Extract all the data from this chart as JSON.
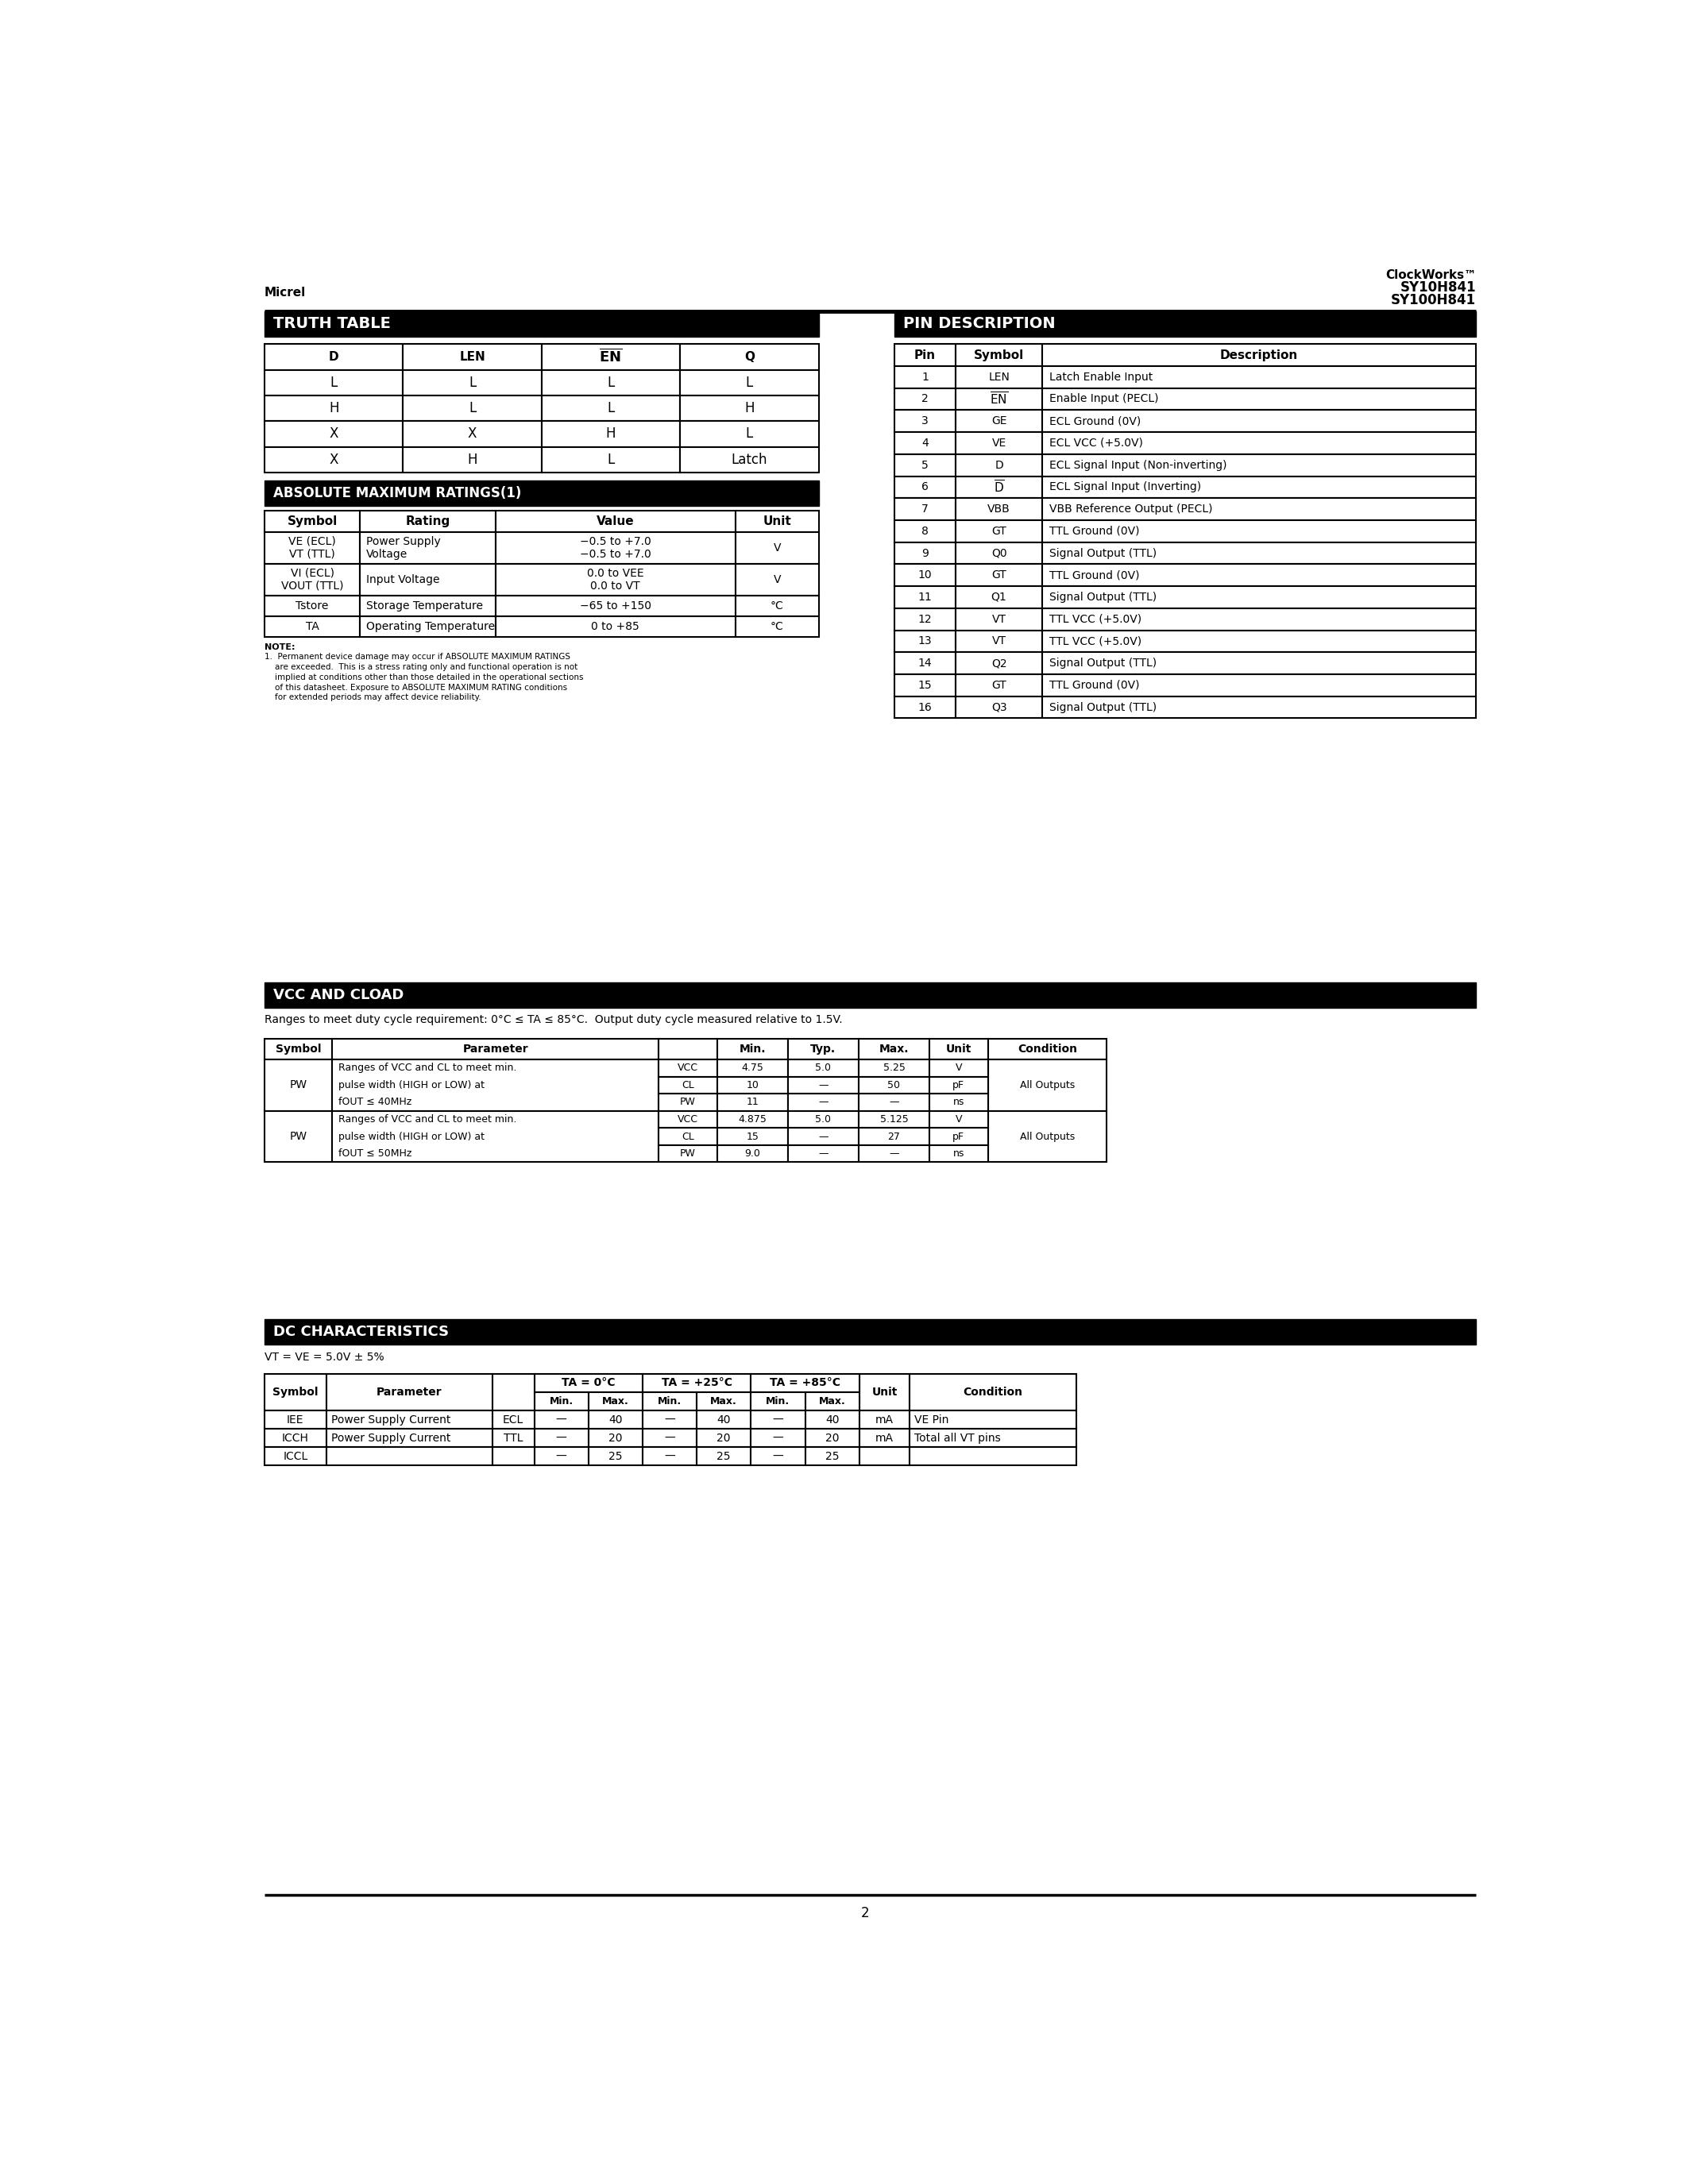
{
  "page_header_left": "Micrel",
  "page_header_right_line1": "ClockWorks™",
  "page_header_right_line2": "SY10H841",
  "page_header_right_line3": "SY100H841",
  "page_number": "2",
  "truth_table_title": "TRUTH TABLE",
  "truth_table_headers": [
    "D",
    "LEN",
    "EN",
    "Q"
  ],
  "truth_table_rows": [
    [
      "L",
      "L",
      "L",
      "L"
    ],
    [
      "H",
      "L",
      "L",
      "H"
    ],
    [
      "X",
      "X",
      "H",
      "L"
    ],
    [
      "X",
      "H",
      "L",
      "Latch"
    ]
  ],
  "abs_max_title": "ABSOLUTE MAXIMUM RATINGS(1)",
  "abs_max_headers": [
    "Symbol",
    "Rating",
    "Value",
    "Unit"
  ],
  "abs_max_rows": [
    [
      "VE (ECL)\nVT (TTL)",
      "Power Supply\nVoltage",
      "−0.5 to +7.0\n−0.5 to +7.0",
      "V"
    ],
    [
      "VI (ECL)\nVOUT (TTL)",
      "Input Voltage",
      "0.0 to VEE\n0.0 to VT",
      "V"
    ],
    [
      "Tstore",
      "Storage Temperature",
      "−65 to +150",
      "°C"
    ],
    [
      "TA",
      "Operating Temperature",
      "0 to +85",
      "°C"
    ]
  ],
  "abs_max_note_lines": [
    "NOTE:",
    "1.  Permanent device damage may occur if ABSOLUTE MAXIMUM RATINGS",
    "    are exceeded.  This is a stress rating only and functional operation is not",
    "    implied at conditions other than those detailed in the operational sections",
    "    of this datasheet. Exposure to ABSOLUTE MAXIMUM RATING conditions",
    "    for extended periods may affect device reliability."
  ],
  "pin_desc_title": "PIN DESCRIPTION",
  "pin_desc_headers": [
    "Pin",
    "Symbol",
    "Description"
  ],
  "pin_desc_rows": [
    [
      "1",
      "LEN",
      "Latch Enable Input"
    ],
    [
      "2",
      "EN_bar",
      "Enable Input (PECL)"
    ],
    [
      "3",
      "GE",
      "ECL Ground (0V)"
    ],
    [
      "4",
      "VE",
      "ECL VCC (+5.0V)"
    ],
    [
      "5",
      "D",
      "ECL Signal Input (Non-inverting)"
    ],
    [
      "6",
      "D_bar",
      "ECL Signal Input (Inverting)"
    ],
    [
      "7",
      "VBB",
      "VBB Reference Output (PECL)"
    ],
    [
      "8",
      "GT",
      "TTL Ground (0V)"
    ],
    [
      "9",
      "Q0",
      "Signal Output (TTL)"
    ],
    [
      "10",
      "GT",
      "TTL Ground (0V)"
    ],
    [
      "11",
      "Q1",
      "Signal Output (TTL)"
    ],
    [
      "12",
      "VT",
      "TTL VCC (+5.0V)"
    ],
    [
      "13",
      "VT",
      "TTL VCC (+5.0V)"
    ],
    [
      "14",
      "Q2",
      "Signal Output (TTL)"
    ],
    [
      "15",
      "GT",
      "TTL Ground (0V)"
    ],
    [
      "16",
      "Q3",
      "Signal Output (TTL)"
    ]
  ],
  "vcc_cload_title": "VCC AND CLOAD",
  "vcc_cload_note": "Ranges to meet duty cycle requirement: 0°C ≤ TA ≤ 85°C.  Output duty cycle measured relative to 1.5V.",
  "vcc_cload_rows": [
    {
      "symbol": "PW",
      "parameter_lines": [
        "Ranges of VCC and CL to meet min.",
        "pulse width (HIGH or LOW) at",
        "fOUT ≤ 40MHz"
      ],
      "sub_params": [
        "VCC",
        "CL",
        "PW"
      ],
      "min_vals": [
        "4.75",
        "10",
        "11"
      ],
      "typ_vals": [
        "5.0",
        "—",
        "—"
      ],
      "max_vals": [
        "5.25",
        "50",
        "—"
      ],
      "units": [
        "V",
        "pF",
        "ns"
      ],
      "condition": "All Outputs"
    },
    {
      "symbol": "PW",
      "parameter_lines": [
        "Ranges of VCC and CL to meet min.",
        "pulse width (HIGH or LOW) at",
        "fOUT ≤ 50MHz"
      ],
      "sub_params": [
        "VCC",
        "CL",
        "PW"
      ],
      "min_vals": [
        "4.875",
        "15",
        "9.0"
      ],
      "typ_vals": [
        "5.0",
        "—",
        "—"
      ],
      "max_vals": [
        "5.125",
        "27",
        "—"
      ],
      "units": [
        "V",
        "pF",
        "ns"
      ],
      "condition": "All Outputs"
    }
  ],
  "dc_char_title": "DC CHARACTERISTICS",
  "dc_char_condition": "VT = VE = 5.0V ± 5%",
  "dc_char_rows": [
    [
      "IEE",
      "Power Supply Current",
      "ECL",
      "—",
      "40",
      "—",
      "40",
      "—",
      "40",
      "mA",
      "VE Pin"
    ],
    [
      "ICCH",
      "Power Supply Current",
      "TTL",
      "—",
      "20",
      "—",
      "20",
      "—",
      "20",
      "mA",
      "Total all VT pins"
    ],
    [
      "ICCL",
      "",
      "",
      "—",
      "25",
      "—",
      "25",
      "—",
      "25",
      "",
      ""
    ]
  ],
  "black": "#000000",
  "white": "#ffffff"
}
